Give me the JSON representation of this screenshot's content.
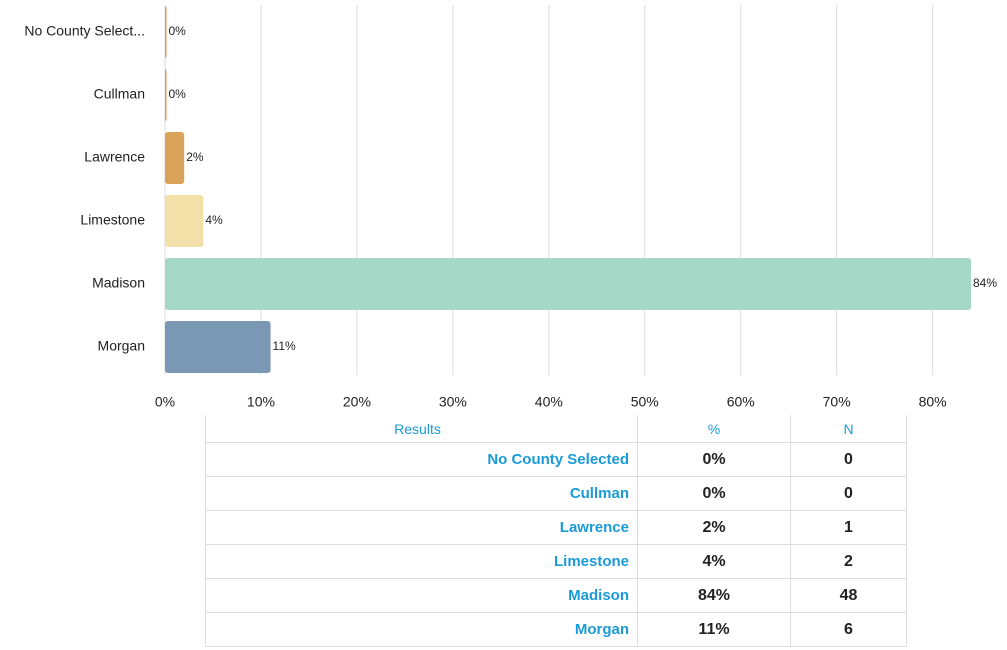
{
  "chart_data": {
    "type": "bar",
    "orientation": "horizontal",
    "categories": [
      "No County Select...",
      "Cullman",
      "Lawrence",
      "Limestone",
      "Madison",
      "Morgan"
    ],
    "values": [
      0,
      0,
      2,
      4,
      84,
      11
    ],
    "value_labels": [
      "0%",
      "0%",
      "2%",
      "4%",
      "84%",
      "11%"
    ],
    "colors": [
      "#e59a4b",
      "#e59a4b",
      "#d9a35a",
      "#f2e0a8",
      "#a5d8c6",
      "#7a98b4"
    ],
    "xlim": [
      0,
      84
    ],
    "xticks": [
      {
        "value": 0,
        "label": "0%"
      },
      {
        "value": 10,
        "label": "10%"
      },
      {
        "value": 20,
        "label": "20%"
      },
      {
        "value": 30,
        "label": "30%"
      },
      {
        "value": 40,
        "label": "40%"
      },
      {
        "value": 50,
        "label": "50%"
      },
      {
        "value": 60,
        "label": "60%"
      },
      {
        "value": 70,
        "label": "70%"
      },
      {
        "value": 80,
        "label": "80%"
      }
    ],
    "grid": true
  },
  "table": {
    "header": [
      "Results",
      "%",
      "N"
    ],
    "rows": [
      [
        "No County Selected",
        "0%",
        0
      ],
      [
        "Cullman",
        "0%",
        0
      ],
      [
        "Lawrence",
        "2%",
        1
      ],
      [
        "Limestone",
        "4%",
        2
      ],
      [
        "Madison",
        "84%",
        48
      ],
      [
        "Morgan",
        "11%",
        6
      ]
    ]
  }
}
